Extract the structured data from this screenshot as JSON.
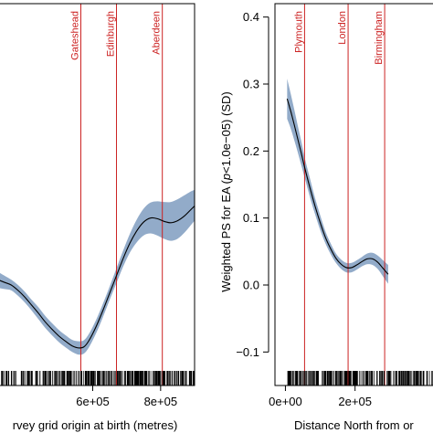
{
  "chart_data": [
    {
      "type": "line",
      "xlabel": "rvey grid origin at birth (metres)",
      "ylabel": "",
      "xlim": [
        300000,
        900000
      ],
      "ylim": [
        -0.12,
        0.42
      ],
      "x_ticks": [
        {
          "value": 600000,
          "label": "6e+05"
        },
        {
          "value": 800000,
          "label": "8e+05"
        }
      ],
      "vlines": [
        {
          "name": "Gateshead",
          "x": 565000,
          "color": "#cc2222"
        },
        {
          "name": "Edinburgh",
          "x": 670000,
          "color": "#cc2222"
        },
        {
          "name": "Aberdeen",
          "x": 805000,
          "color": "#cc2222"
        }
      ],
      "band_color": "#7f9cc0",
      "line_color": "#000000",
      "series": [
        {
          "x": [
            300000,
            320000,
            340000,
            360000,
            380000,
            400000,
            420000,
            440000,
            460000,
            480000,
            500000,
            520000,
            540000,
            560000,
            575000,
            590000,
            610000,
            630000,
            650000,
            670000,
            690000,
            710000,
            730000,
            750000,
            770000,
            790000,
            810000,
            830000,
            850000,
            870000,
            890000,
            900000
          ],
          "y": [
            0.012,
            0.008,
            0.004,
            0.0,
            -0.008,
            -0.018,
            -0.03,
            -0.042,
            -0.055,
            -0.066,
            -0.076,
            -0.084,
            -0.091,
            -0.094,
            -0.092,
            -0.082,
            -0.062,
            -0.038,
            -0.012,
            0.014,
            0.04,
            0.063,
            0.081,
            0.094,
            0.1,
            0.099,
            0.095,
            0.093,
            0.096,
            0.103,
            0.113,
            0.118
          ],
          "lower": [
            -0.002,
            -0.004,
            -0.006,
            -0.008,
            -0.016,
            -0.026,
            -0.038,
            -0.051,
            -0.064,
            -0.075,
            -0.085,
            -0.093,
            -0.1,
            -0.104,
            -0.102,
            -0.092,
            -0.072,
            -0.048,
            -0.022,
            0.003,
            0.028,
            0.049,
            0.064,
            0.074,
            0.077,
            0.074,
            0.069,
            0.066,
            0.069,
            0.078,
            0.09,
            0.096
          ],
          "upper": [
            0.026,
            0.02,
            0.014,
            0.008,
            0.0,
            -0.01,
            -0.022,
            -0.033,
            -0.046,
            -0.057,
            -0.067,
            -0.075,
            -0.082,
            -0.084,
            -0.082,
            -0.072,
            -0.052,
            -0.028,
            -0.002,
            0.025,
            0.052,
            0.077,
            0.098,
            0.114,
            0.123,
            0.125,
            0.124,
            0.124,
            0.128,
            0.134,
            0.14,
            0.142
          ]
        }
      ]
    },
    {
      "type": "line",
      "xlabel": "Distance North from or",
      "ylabel_parts": [
        "Weighted PS for EA (",
        "p",
        "<1.0e−05) (SD)"
      ],
      "xlim": [
        -30000,
        450000
      ],
      "ylim": [
        -0.12,
        0.42
      ],
      "x_ticks": [
        {
          "value": 0,
          "label": "0e+00"
        },
        {
          "value": 200000,
          "label": "2e+05"
        }
      ],
      "y_ticks": [
        {
          "value": -0.1,
          "label": "−0.1"
        },
        {
          "value": 0.0,
          "label": "0.0"
        },
        {
          "value": 0.1,
          "label": "0.1"
        },
        {
          "value": 0.2,
          "label": "0.2"
        },
        {
          "value": 0.3,
          "label": "0.3"
        },
        {
          "value": 0.4,
          "label": "0.4"
        }
      ],
      "vlines": [
        {
          "name": "Plymouth",
          "x": 55000,
          "color": "#cc2222"
        },
        {
          "name": "London",
          "x": 180000,
          "color": "#cc2222"
        },
        {
          "name": "Birmingham",
          "x": 285000,
          "color": "#cc2222"
        }
      ],
      "band_color": "#7f9cc0",
      "line_color": "#000000",
      "series": [
        {
          "x": [
            5000,
            15000,
            25000,
            35000,
            45000,
            55000,
            70000,
            85000,
            100000,
            115000,
            130000,
            145000,
            160000,
            175000,
            190000,
            205000,
            220000,
            235000,
            250000,
            265000,
            280000,
            295000
          ],
          "y": [
            0.278,
            0.26,
            0.24,
            0.219,
            0.198,
            0.176,
            0.146,
            0.118,
            0.093,
            0.071,
            0.054,
            0.04,
            0.031,
            0.026,
            0.026,
            0.03,
            0.035,
            0.039,
            0.039,
            0.034,
            0.025,
            0.016
          ],
          "lower": [
            0.248,
            0.234,
            0.217,
            0.199,
            0.18,
            0.161,
            0.132,
            0.106,
            0.082,
            0.062,
            0.046,
            0.033,
            0.024,
            0.019,
            0.019,
            0.023,
            0.028,
            0.031,
            0.03,
            0.024,
            0.013,
            0.002
          ],
          "upper": [
            0.308,
            0.286,
            0.263,
            0.239,
            0.216,
            0.191,
            0.16,
            0.13,
            0.104,
            0.08,
            0.062,
            0.047,
            0.038,
            0.033,
            0.033,
            0.037,
            0.042,
            0.047,
            0.048,
            0.044,
            0.037,
            0.03
          ]
        }
      ]
    }
  ]
}
